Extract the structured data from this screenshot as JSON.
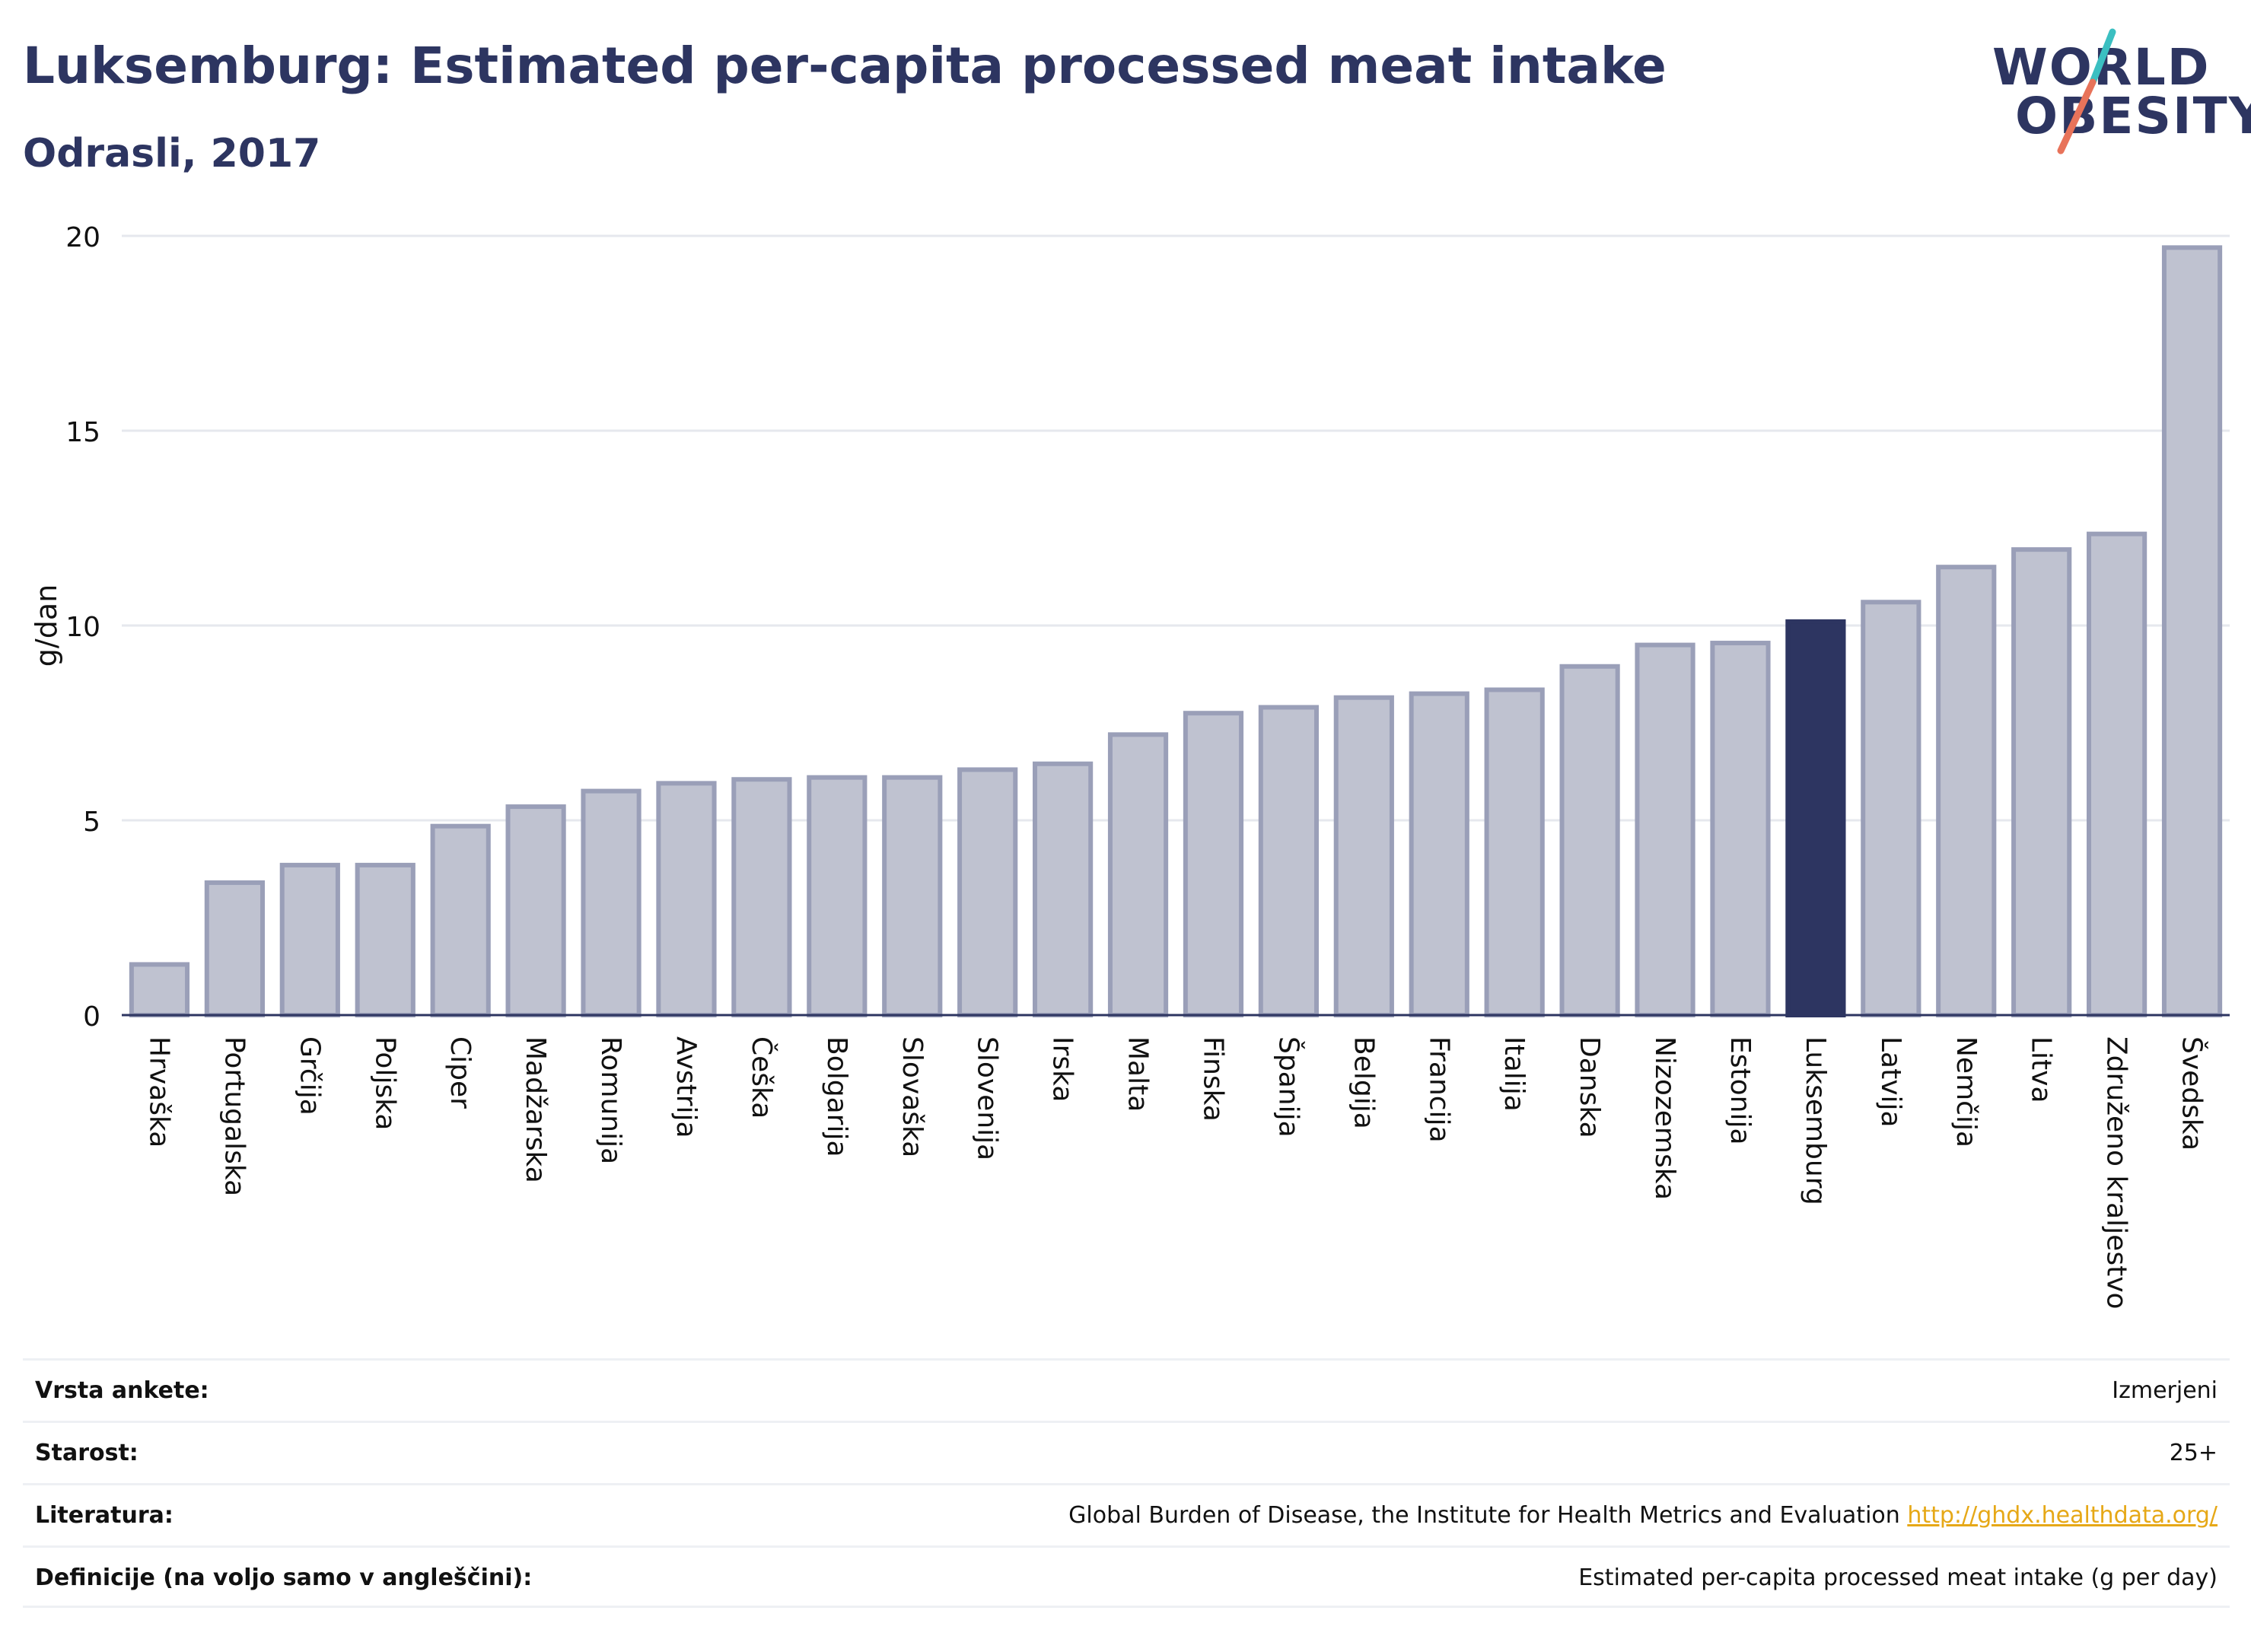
{
  "header": {
    "title": "Luksemburg: Estimated per-capita processed meat intake",
    "subtitle": "Odrasli, 2017"
  },
  "logo": {
    "line1": "WORLD",
    "line2": "OBESITY",
    "accent_teal": "#3bbfc1",
    "accent_coral": "#e8735a"
  },
  "colors": {
    "bar_fill": "#bfc2d0",
    "bar_stroke": "#9a9fb8",
    "highlight": "#2d3561",
    "grid": "#e6e8ee",
    "text": "#2d3561"
  },
  "chart_data": {
    "type": "bar",
    "title": "Luksemburg: Estimated per-capita processed meat intake",
    "subtitle": "Odrasli, 2017",
    "xlabel": "",
    "ylabel": "g/dan",
    "ylim": [
      0,
      20
    ],
    "yticks": [
      0,
      5,
      10,
      15,
      20
    ],
    "grid": true,
    "highlight": "Luksemburg",
    "categories": [
      "Hrvaška",
      "Portugalska",
      "Grčija",
      "Poljska",
      "Ciper",
      "Madžarska",
      "Romunija",
      "Avstrija",
      "Češka",
      "Bolgarija",
      "Slovaška",
      "Slovenija",
      "Irska",
      "Malta",
      "Finska",
      "Španija",
      "Belgija",
      "Francija",
      "Italija",
      "Danska",
      "Nizozemska",
      "Estonija",
      "Luksemburg",
      "Latvija",
      "Nemčija",
      "Litva",
      "Združeno kraljestvo",
      "Švedska"
    ],
    "values": [
      1.3,
      3.4,
      3.85,
      3.85,
      4.85,
      5.35,
      5.75,
      5.95,
      6.05,
      6.1,
      6.1,
      6.3,
      6.45,
      7.2,
      7.75,
      7.9,
      8.15,
      8.25,
      8.35,
      8.95,
      9.5,
      9.55,
      10.1,
      10.6,
      11.5,
      11.95,
      12.35,
      19.7
    ]
  },
  "info": {
    "rows": [
      {
        "label": "Vrsta ankete:",
        "value": "Izmerjeni",
        "link": ""
      },
      {
        "label": "Starost:",
        "value": "25+",
        "link": ""
      },
      {
        "label": "Literatura:",
        "value": "Global Burden of Disease, the Institute for Health Metrics and Evaluation ",
        "link": "http://ghdx.healthdata.org/"
      },
      {
        "label": "Definicije (na voljo samo v angleščini):",
        "value": "Estimated per-capita processed meat intake (g per day)",
        "link": ""
      }
    ]
  }
}
